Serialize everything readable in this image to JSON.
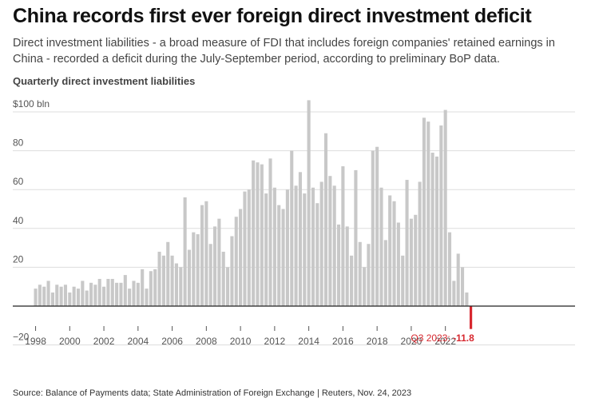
{
  "header": {
    "title": "China records first ever foreign direct investment deficit",
    "subtitle": "Direct investment liabilities - a broad measure of FDI that includes foreign companies' retained earnings in China - recorded a deficit during the July-September period, according to preliminary BoP data.",
    "chart_label": "Quarterly direct investment liabilities"
  },
  "footer": {
    "source": "Source: Balance of Payments data; State Administration of Foreign Exchange | Reuters, Nov. 24, 2023"
  },
  "colors": {
    "bar": "#c8c8c8",
    "highlight": "#d7282f",
    "axis": "#222222",
    "grid": "#dddddd"
  },
  "chart_data": {
    "type": "bar",
    "ylim": [
      -20,
      100
    ],
    "yticks": [
      -20,
      20,
      40,
      60,
      80,
      100
    ],
    "ytick_labels": [
      "−20",
      "20",
      "40",
      "60",
      "80",
      "$100 bln"
    ],
    "xtick_labels": [
      "1998",
      "2000",
      "2002",
      "2004",
      "2006",
      "2008",
      "2010",
      "2012",
      "2014",
      "2016",
      "2018",
      "2020",
      "2022"
    ],
    "start_year": 1998,
    "values": [
      9,
      11,
      10,
      13,
      7,
      11,
      10,
      11,
      7,
      10,
      9,
      13,
      8,
      12,
      11,
      14,
      10,
      14,
      14,
      12,
      12,
      16,
      9,
      13,
      12,
      19,
      9,
      18,
      19,
      28,
      26,
      33,
      26,
      22,
      20,
      56,
      29,
      38,
      37,
      52,
      54,
      32,
      41,
      45,
      28,
      20,
      36,
      46,
      50,
      59,
      60,
      75,
      74,
      73,
      58,
      76,
      61,
      52,
      50,
      60,
      80,
      62,
      69,
      58,
      106,
      61,
      53,
      64,
      89,
      67,
      62,
      42,
      72,
      41,
      26,
      70,
      33,
      20,
      32,
      80,
      82,
      61,
      34,
      57,
      54,
      43,
      26,
      65,
      45,
      47,
      64,
      97,
      95,
      79,
      77,
      93,
      101,
      38,
      13,
      27,
      20,
      7,
      -11.8
    ],
    "highlight_last": true,
    "annotation": {
      "label": "Q3 2023: ",
      "value": "-11.8"
    }
  }
}
